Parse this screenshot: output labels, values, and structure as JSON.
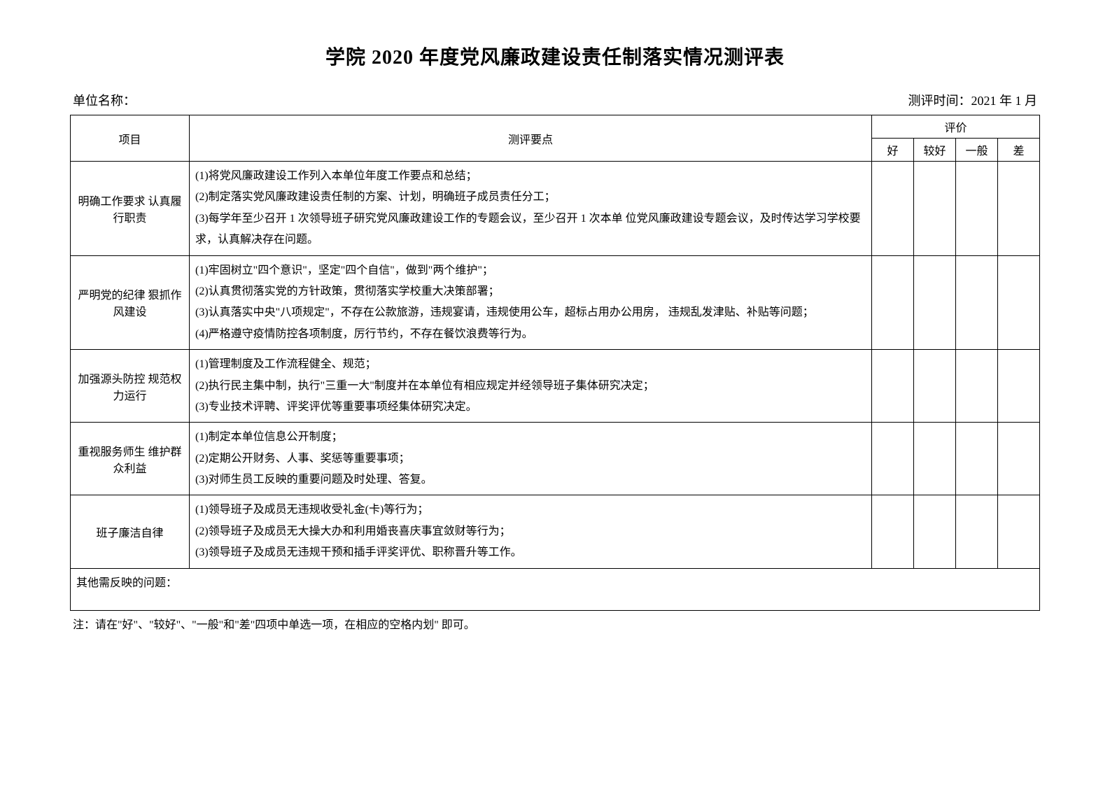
{
  "title": "学院 2020 年度党风廉政建设责任制落实情况测评表",
  "header": {
    "unit_label": "单位名称：",
    "time_label": "测评时间：2021 年 1 月"
  },
  "columns": {
    "project": "项目",
    "content": "测评要点",
    "eval_group": "评价",
    "eval": [
      "好",
      "较好",
      "一般",
      "差"
    ]
  },
  "rows": [
    {
      "project": "明确工作要求 认真履行职责",
      "content": "(1)将党风廉政建设工作列入本单位年度工作要点和总结；\n(2)制定落实党风廉政建设责任制的方案、计划，明确班子成员责任分工；\n(3)每学年至少召开 1 次领导班子研究党风廉政建设工作的专题会议，至少召开 1 次本单 位党风廉政建设专题会议，及时传达学习学校要求，认真解决存在问题。"
    },
    {
      "project": "严明党的纪律 狠抓作风建设",
      "content": "(1)牢固树立\"四个意识\"，坚定\"四个自信\"，做到\"两个维护\"；\n(2)认真贯彻落实党的方针政策，贯彻落实学校重大决策部署；\n(3)认真落实中央\"八项规定\"，不存在公款旅游，违规宴请，违规使用公车，超标占用办公用房， 违规乱发津贴、补贴等问题；\n(4)严格遵守疫情防控各项制度，厉行节约，不存在餐饮浪费等行为。"
    },
    {
      "project": "加强源头防控 规范权力运行",
      "content": "(1)管理制度及工作流程健全、规范；\n(2)执行民主集中制，执行\"三重一大\"制度并在本单位有相应规定并经领导班子集体研究决定；\n(3)专业技术评聘、评奖评优等重要事项经集体研究决定。"
    },
    {
      "project": "重视服务师生 维护群众利益",
      "content": "(1)制定本单位信息公开制度；\n(2)定期公开财务、人事、奖惩等重要事项；\n(3)对师生员工反映的重要问题及时处理、答复。"
    },
    {
      "project": "班子廉洁自律",
      "content": "(1)领导班子及成员无违规收受礼金(卡)等行为；\n(2)领导班子及成员无大操大办和利用婚丧喜庆事宜敛财等行为；\n(3)领导班子及成员无违规干预和插手评奖评优、职称晋升等工作。"
    }
  ],
  "others_label": "其他需反映的问题：",
  "note": "注：请在\"好\"、\"较好\"、\"一般\"和\"差\"四项中单选一项，在相应的空格内划\" 即可。"
}
